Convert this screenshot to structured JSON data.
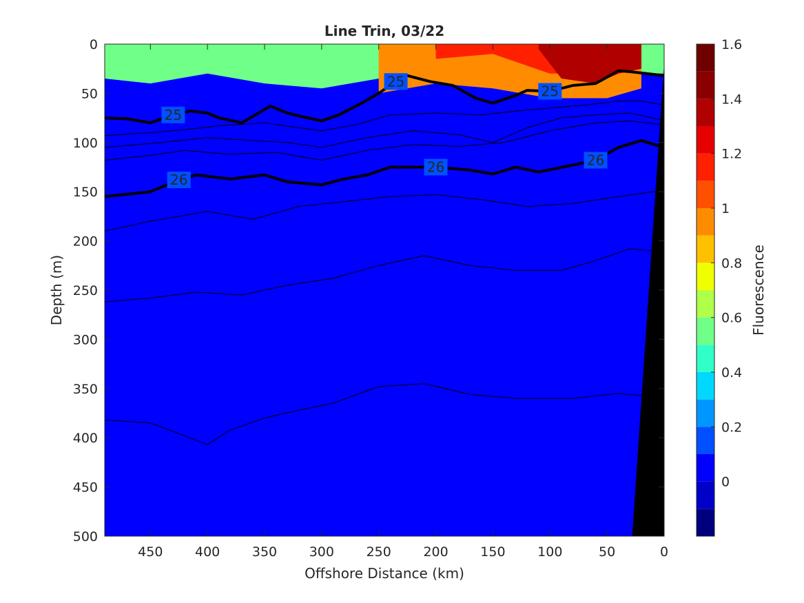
{
  "chart_data": {
    "type": "heatmap",
    "title": "Line Trin, 03/22",
    "xlabel": "Offshore Distance (km)",
    "ylabel": "Depth (m)",
    "xlim": [
      490,
      0
    ],
    "ylim": [
      500,
      0
    ],
    "x_reversed": true,
    "y_reversed": true,
    "x_ticks": [
      450,
      400,
      350,
      300,
      250,
      200,
      150,
      100,
      50,
      0
    ],
    "y_ticks": [
      0,
      50,
      100,
      150,
      200,
      250,
      300,
      350,
      400,
      450,
      500
    ],
    "colorbar": {
      "label": "Fluorescence",
      "limits": [
        -0.2,
        1.6
      ],
      "ticks": [
        0,
        0.2,
        0.4,
        0.6,
        0.8,
        1,
        1.2,
        1.4,
        1.6
      ],
      "levels": [
        -0.2,
        -0.1,
        0,
        0.1,
        0.2,
        0.3,
        0.4,
        0.5,
        0.6,
        0.7,
        0.8,
        0.9,
        1.0,
        1.1,
        1.2,
        1.3,
        1.4,
        1.5,
        1.6
      ],
      "colors": [
        "#00007f",
        "#0000c8",
        "#0000ff",
        "#0050ff",
        "#0096ff",
        "#00d8ff",
        "#30ffc8",
        "#70ff88",
        "#b0ff48",
        "#f0ff00",
        "#ffc000",
        "#ff8c00",
        "#ff5000",
        "#ff2000",
        "#e60000",
        "#b00000",
        "#8a0000",
        "#6e0000"
      ]
    },
    "fluorescence_layers": [
      {
        "distance": [
          490,
          450,
          400,
          350,
          300,
          250,
          200,
          150,
          100,
          50,
          0
        ],
        "depth": [
          35,
          40,
          30,
          40,
          45,
          35,
          25,
          30,
          30,
          30,
          30
        ],
        "value": 0.5
      },
      {
        "distance": [
          250,
          200,
          150,
          100,
          50,
          20
        ],
        "depth": [
          50,
          40,
          45,
          55,
          55,
          45
        ],
        "value": 0.9
      },
      {
        "distance": [
          200,
          150,
          100,
          50,
          20
        ],
        "depth": [
          15,
          10,
          30,
          30,
          20
        ],
        "value": 1.1
      },
      {
        "distance": [
          110,
          90,
          60,
          40,
          20
        ],
        "depth": [
          5,
          35,
          40,
          30,
          25
        ],
        "value": 1.3
      }
    ],
    "seafloor": {
      "distance": [
        28,
        0
      ],
      "depth": [
        500,
        20
      ]
    },
    "density_contours": [
      {
        "label": "25",
        "bold": true,
        "distance": [
          490,
          470,
          450,
          430,
          415,
          400,
          390,
          370,
          345,
          330,
          320,
          300,
          285,
          265,
          250,
          235,
          225,
          205,
          185,
          165,
          150,
          130,
          120,
          100,
          80,
          60,
          40,
          30,
          0
        ],
        "depth": [
          75,
          76,
          80,
          72,
          68,
          70,
          75,
          80,
          63,
          70,
          73,
          78,
          72,
          60,
          50,
          38,
          32,
          38,
          42,
          55,
          60,
          52,
          47,
          48,
          42,
          40,
          27,
          28,
          32
        ]
      },
      {
        "label": "26",
        "bold": true,
        "distance": [
          490,
          450,
          425,
          410,
          380,
          350,
          330,
          300,
          280,
          260,
          240,
          200,
          170,
          150,
          130,
          110,
          80,
          60,
          40,
          20,
          0
        ],
        "depth": [
          155,
          150,
          138,
          133,
          137,
          133,
          140,
          143,
          137,
          133,
          125,
          125,
          128,
          132,
          125,
          130,
          123,
          118,
          105,
          98,
          105
        ]
      },
      {
        "label": "",
        "bold": false,
        "distance": [
          490,
          450,
          420,
          390,
          350,
          320,
          300,
          270,
          240,
          200,
          160,
          130,
          100,
          70,
          40,
          20,
          0
        ],
        "depth": [
          93,
          90,
          87,
          83,
          80,
          85,
          88,
          82,
          72,
          70,
          72,
          68,
          65,
          62,
          58,
          58,
          62
        ]
      },
      {
        "label": "",
        "bold": false,
        "distance": [
          490,
          440,
          400,
          360,
          330,
          300,
          260,
          220,
          180,
          150,
          120,
          90,
          60,
          30,
          10,
          0
        ],
        "depth": [
          105,
          100,
          95,
          98,
          100,
          105,
          95,
          88,
          92,
          100,
          85,
          75,
          72,
          70,
          75,
          78
        ]
      },
      {
        "label": "",
        "bold": false,
        "distance": [
          490,
          450,
          420,
          380,
          340,
          300,
          260,
          220,
          180,
          140,
          100,
          60,
          30,
          0
        ],
        "depth": [
          118,
          113,
          108,
          112,
          110,
          118,
          108,
          102,
          104,
          100,
          88,
          80,
          78,
          82
        ]
      },
      {
        "label": "",
        "bold": false,
        "distance": [
          490,
          450,
          400,
          360,
          320,
          280,
          240,
          200,
          160,
          120,
          80,
          40,
          10,
          0
        ],
        "depth": [
          190,
          180,
          170,
          178,
          165,
          160,
          155,
          153,
          158,
          165,
          162,
          155,
          150,
          150
        ]
      },
      {
        "label": "",
        "bold": false,
        "distance": [
          490,
          450,
          410,
          370,
          330,
          290,
          250,
          210,
          170,
          130,
          90,
          60,
          30,
          10,
          0
        ],
        "depth": [
          262,
          258,
          252,
          255,
          245,
          238,
          225,
          215,
          225,
          230,
          230,
          220,
          208,
          210,
          212
        ]
      },
      {
        "label": "",
        "bold": false,
        "distance": [
          490,
          450,
          420,
          400,
          380,
          350,
          320,
          290,
          250,
          210,
          170,
          130,
          80,
          40,
          20
        ],
        "depth": [
          382,
          385,
          398,
          407,
          392,
          380,
          372,
          365,
          348,
          345,
          356,
          360,
          360,
          355,
          357
        ]
      }
    ]
  }
}
